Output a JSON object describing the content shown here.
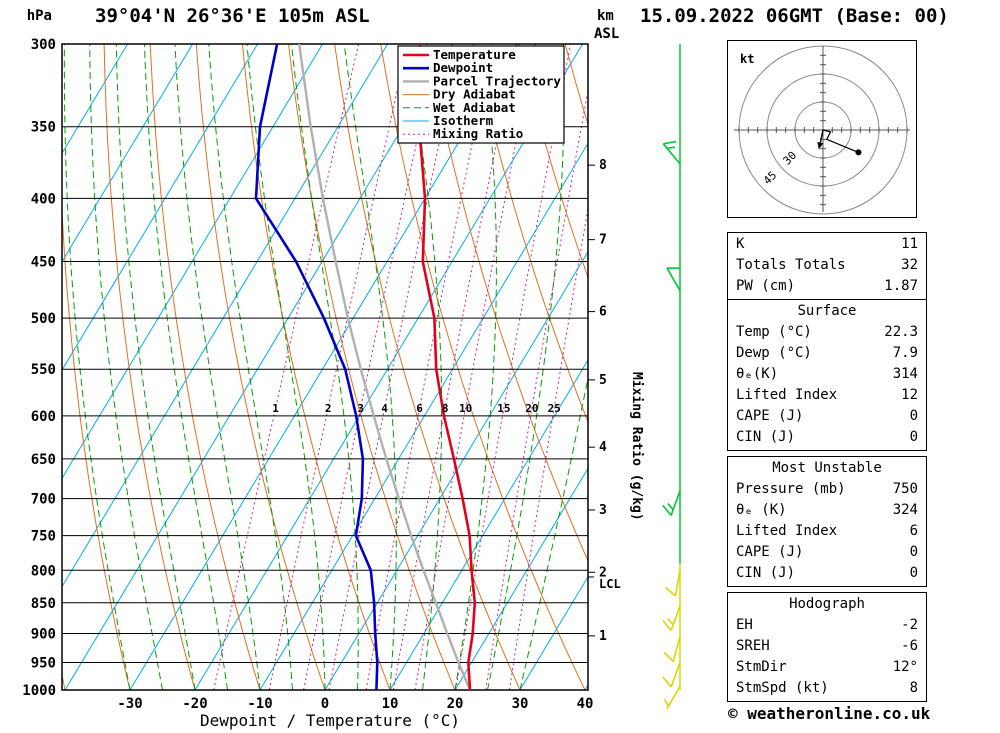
{
  "header": {
    "station": "39°04'N 26°36'E 105m ASL",
    "datetime": "15.09.2022 06GMT (Base: 00)",
    "footer": "© weatheronline.co.uk"
  },
  "axes": {
    "pressure_unit": "hPa",
    "km_unit_line1": "km",
    "km_unit_line2": "ASL",
    "xlabel": "Dewpoint / Temperature (°C)",
    "mixing_axis_label": "Mixing Ratio (g/kg)",
    "lcl_label": "LCL",
    "pressure_ticks": [
      300,
      350,
      400,
      450,
      500,
      550,
      600,
      650,
      700,
      750,
      800,
      850,
      900,
      950,
      1000
    ],
    "temp_ticks": [
      -30,
      -20,
      -10,
      0,
      10,
      20,
      30,
      40
    ],
    "km_ticks": [
      {
        "km": 1,
        "p": 904
      },
      {
        "km": 2,
        "p": 803
      },
      {
        "km": 3,
        "p": 715
      },
      {
        "km": 4,
        "p": 636
      },
      {
        "km": 5,
        "p": 561
      },
      {
        "km": 6,
        "p": 494
      },
      {
        "km": 7,
        "p": 432
      },
      {
        "km": 8,
        "p": 376
      }
    ]
  },
  "legend": {
    "entries": [
      {
        "key": "temperature",
        "label": "Temperature",
        "color": "#e3001b",
        "width": 2.6,
        "dash": ""
      },
      {
        "key": "dewpoint",
        "label": "Dewpoint",
        "color": "#0000c8",
        "width": 2.6,
        "dash": ""
      },
      {
        "key": "parcel",
        "label": "Parcel Trajectory",
        "color": "#b0b0b0",
        "width": 2.4,
        "dash": ""
      },
      {
        "key": "dry_adiabat",
        "label": "Dry Adiabat",
        "color": "#e07020",
        "width": 1,
        "dash": ""
      },
      {
        "key": "wet_adiabat",
        "label": "Wet Adiabat",
        "color": "#00a000",
        "width": 1,
        "dash": "7,4"
      },
      {
        "key": "isotherm",
        "label": "Isotherm",
        "color": "#00aeef",
        "width": 1,
        "dash": ""
      },
      {
        "key": "mixing_ratio",
        "label": "Mixing Ratio",
        "color": "#d02090",
        "width": 1,
        "dash": "2,3"
      }
    ]
  },
  "chart_data": {
    "type": "skewt_logp",
    "title": "39°04'N 26°36'E 105m ASL",
    "valid": "15.09.2022 06GMT (Base: 00)",
    "pressure_range_hPa": [
      300,
      1000
    ],
    "temp_axis_range_C": [
      -40,
      41
    ],
    "mixing_ratio_lines_gkg": [
      1,
      2,
      3,
      4,
      6,
      8,
      10,
      15,
      20,
      25
    ],
    "lcl_pressure_hPa": 810,
    "sounding": {
      "pressure_hPa": [
        1000,
        950,
        900,
        850,
        800,
        750,
        700,
        650,
        600,
        550,
        500,
        450,
        400,
        350,
        300
      ],
      "temperature_C": [
        22.3,
        19.5,
        17.5,
        15.0,
        11.5,
        8.0,
        3.5,
        -1.5,
        -7.0,
        -12.5,
        -17.5,
        -24.5,
        -30.0,
        -37.5,
        -45.0
      ],
      "dewpoint_C": [
        7.9,
        5.5,
        2.5,
        -0.5,
        -4.0,
        -9.5,
        -12.0,
        -15.5,
        -20.5,
        -26.5,
        -34.5,
        -44.0,
        -56.0,
        -62.0,
        -67.0
      ],
      "parcel_C": [
        22.3,
        18.0,
        13.6,
        9.0,
        4.1,
        -1.0,
        -6.3,
        -11.9,
        -17.8,
        -24.1,
        -30.8,
        -37.9,
        -45.7,
        -54.2,
        -63.6
      ]
    },
    "wind_barbs": [
      {
        "pressure_hPa": 375,
        "speed_kt": 15,
        "dir_deg": 320,
        "color": "#00c832"
      },
      {
        "pressure_hPa": 475,
        "speed_kt": 10,
        "dir_deg": 330,
        "color": "#00c832"
      },
      {
        "pressure_hPa": 690,
        "speed_kt": 15,
        "dir_deg": 200,
        "color": "#00c832"
      },
      {
        "pressure_hPa": 800,
        "speed_kt": 10,
        "dir_deg": 190,
        "color": "#d8d800"
      },
      {
        "pressure_hPa": 855,
        "speed_kt": 15,
        "dir_deg": 200,
        "color": "#d8d800"
      },
      {
        "pressure_hPa": 905,
        "speed_kt": 10,
        "dir_deg": 195,
        "color": "#d8d800"
      },
      {
        "pressure_hPa": 950,
        "speed_kt": 10,
        "dir_deg": 200,
        "color": "#d8d800"
      },
      {
        "pressure_hPa": 993,
        "speed_kt": 5,
        "dir_deg": 210,
        "color": "#d8d800"
      }
    ],
    "staff_segments": [
      {
        "p1": 300,
        "p2": 790,
        "color": "#00c832"
      },
      {
        "p1": 790,
        "p2": 1000,
        "color": "#d8d800"
      }
    ]
  },
  "hodograph": {
    "unit_label": "kt",
    "rings_kt": [
      15,
      30,
      45
    ],
    "ring_labels": [
      {
        "text": "30",
        "r": 30
      },
      {
        "text": "45",
        "r": 45
      }
    ],
    "trace_kt": [
      [
        0,
        0
      ],
      [
        4,
        -1
      ],
      [
        2,
        -5
      ],
      [
        19,
        -12
      ]
    ],
    "dot_kt": [
      19,
      -12
    ],
    "storm_motion": {
      "dir_deg": 12,
      "speed_kt": 8
    }
  },
  "indices": {
    "boxes": [
      {
        "id": "stability",
        "title": null,
        "rows": [
          [
            "K",
            "11"
          ],
          [
            "Totals Totals",
            "32"
          ],
          [
            "PW (cm)",
            "1.87"
          ]
        ]
      },
      {
        "id": "surface",
        "title": "Surface",
        "rows": [
          [
            "Temp (°C)",
            "22.3"
          ],
          [
            "Dewp (°C)",
            "7.9"
          ],
          [
            "θₑ(K)",
            "314"
          ],
          [
            "Lifted Index",
            "12"
          ],
          [
            "CAPE (J)",
            "0"
          ],
          [
            "CIN (J)",
            "0"
          ]
        ]
      },
      {
        "id": "most-unstable",
        "title": "Most Unstable",
        "rows": [
          [
            "Pressure (mb)",
            "750"
          ],
          [
            "θₑ (K)",
            "324"
          ],
          [
            "Lifted Index",
            "6"
          ],
          [
            "CAPE (J)",
            "0"
          ],
          [
            "CIN (J)",
            "0"
          ]
        ]
      },
      {
        "id": "hodograph",
        "title": "Hodograph",
        "rows": [
          [
            "EH",
            "-2"
          ],
          [
            "SREH",
            "-6"
          ],
          [
            "StmDir",
            "12°"
          ],
          [
            "StmSpd (kt)",
            "8"
          ]
        ]
      }
    ]
  }
}
